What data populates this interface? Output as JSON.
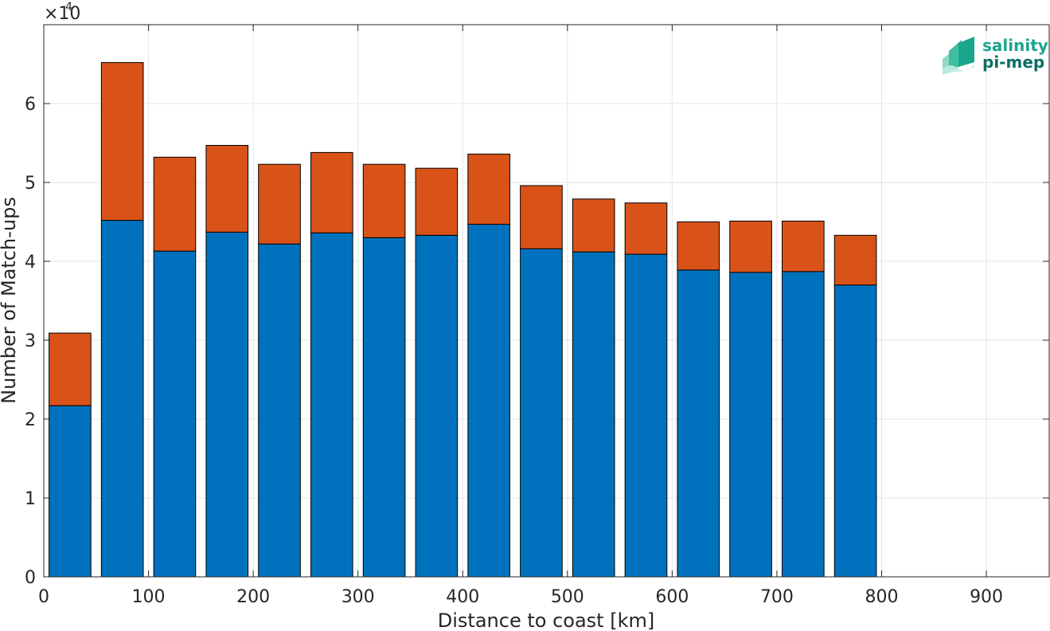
{
  "chart_data": {
    "type": "bar",
    "stacked": true,
    "xlabel": "Distance to coast [km]",
    "ylabel": "Number of Match-ups",
    "y_exponent_label": "×10",
    "y_exponent_power": "4",
    "xlim": [
      0,
      960
    ],
    "ylim": [
      0,
      70000
    ],
    "grid": true,
    "bin_width": 40,
    "x": [
      25,
      75,
      125,
      175,
      225,
      275,
      325,
      375,
      425,
      475,
      525,
      575,
      625,
      675,
      725,
      775,
      825,
      875,
      925
    ],
    "series": [
      {
        "color": "#0072BD",
        "values": [
          21700,
          45200,
          41300,
          43700,
          42200,
          43600,
          43000,
          43300,
          44700,
          41600,
          41200,
          40900,
          38900,
          38600,
          38700,
          37000,
          0,
          0,
          0
        ]
      },
      {
        "color": "#D95319",
        "values": [
          9200,
          20000,
          11900,
          11000,
          10100,
          10200,
          9300,
          8500,
          8900,
          8000,
          6700,
          6500,
          6100,
          6500,
          6400,
          6300,
          0,
          0,
          0
        ]
      }
    ],
    "xticks": [
      "0",
      "100",
      "200",
      "300",
      "400",
      "500",
      "600",
      "700",
      "800",
      "900"
    ],
    "yticks": [
      "0",
      "1",
      "2",
      "3",
      "4",
      "5",
      "6"
    ]
  },
  "logo": {
    "line1": "salinity",
    "line2": "pi-mep"
  },
  "colors": {
    "accent": "#1aa58c",
    "accent_dark": "#0d6e63"
  }
}
